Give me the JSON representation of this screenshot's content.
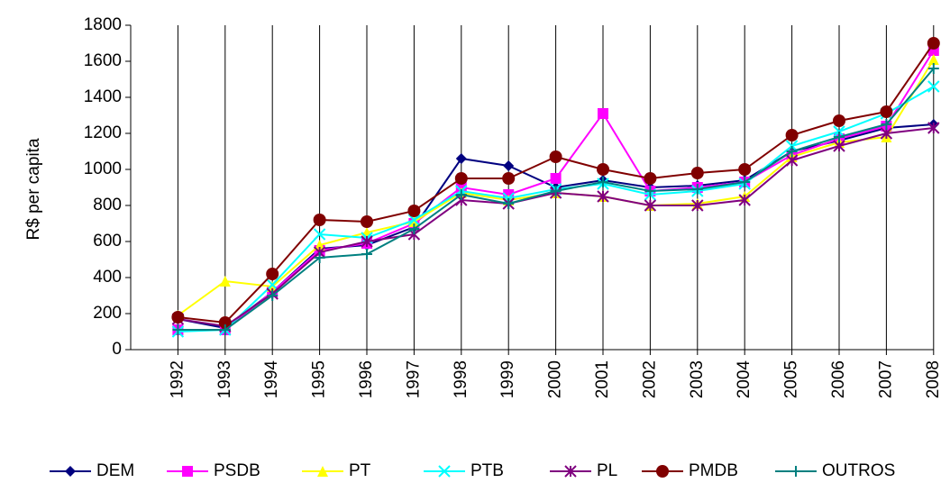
{
  "chart_data": {
    "type": "line",
    "y_label": "R$ per capita",
    "categories": [
      "1992",
      "1993",
      "1994",
      "1995",
      "1996",
      "1997",
      "1998",
      "1999",
      "2000",
      "2001",
      "2002",
      "2003",
      "2004",
      "2005",
      "2006",
      "2007",
      "2008"
    ],
    "ylim": [
      0,
      1800
    ],
    "yticks": [
      0,
      200,
      400,
      600,
      800,
      1000,
      1200,
      1400,
      1600,
      1800
    ],
    "grid": "vertical",
    "legend": "bottom",
    "series": [
      {
        "name": "DEM",
        "color": "#000080",
        "marker": "diamond",
        "values": [
          170,
          120,
          320,
          560,
          580,
          680,
          1060,
          1020,
          900,
          940,
          900,
          910,
          940,
          1100,
          1160,
          1230,
          1250
        ]
      },
      {
        "name": "PSDB",
        "color": "#ff00ff",
        "marker": "square",
        "values": [
          110,
          110,
          320,
          550,
          590,
          700,
          900,
          860,
          950,
          1310,
          880,
          900,
          930,
          1080,
          1170,
          1240,
          1660
        ]
      },
      {
        "name": "PT",
        "color": "#ffff00",
        "marker": "triangle",
        "values": [
          190,
          380,
          350,
          580,
          650,
          710,
          870,
          830,
          870,
          850,
          800,
          810,
          850,
          1070,
          1150,
          1180,
          1610
        ]
      },
      {
        "name": "PTB",
        "color": "#00ffff",
        "marker": "x",
        "values": [
          100,
          110,
          360,
          640,
          620,
          720,
          880,
          840,
          890,
          920,
          860,
          880,
          920,
          1130,
          1210,
          1310,
          1460
        ]
      },
      {
        "name": "PL",
        "color": "#800080",
        "marker": "asterisk",
        "values": [
          170,
          130,
          310,
          540,
          600,
          640,
          830,
          810,
          870,
          850,
          800,
          800,
          830,
          1050,
          1130,
          1200,
          1230
        ]
      },
      {
        "name": "PMDB",
        "color": "#800000",
        "marker": "circle",
        "values": [
          180,
          150,
          420,
          720,
          710,
          770,
          950,
          950,
          1070,
          1000,
          950,
          980,
          1000,
          1190,
          1270,
          1320,
          1700
        ]
      },
      {
        "name": "OUTROS",
        "color": "#008080",
        "marker": "plus",
        "values": [
          110,
          110,
          300,
          510,
          530,
          670,
          860,
          810,
          880,
          930,
          880,
          890,
          930,
          1100,
          1180,
          1250,
          1560
        ]
      }
    ]
  }
}
